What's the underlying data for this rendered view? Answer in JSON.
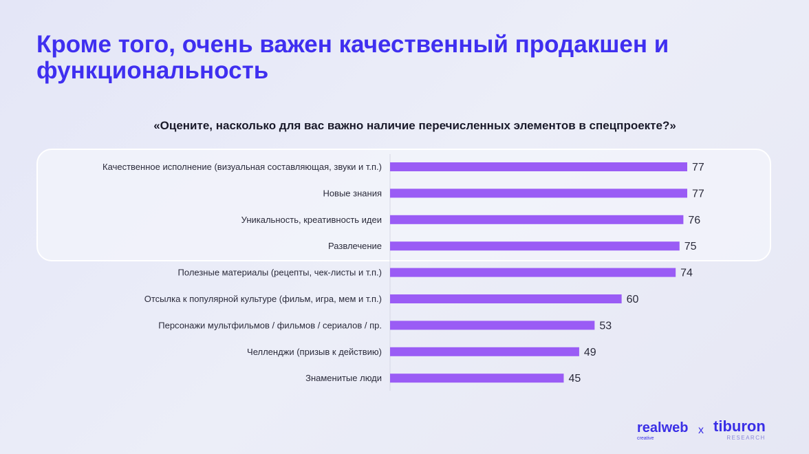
{
  "title": "Кроме того, очень важен качественный продакшен и функциональность",
  "chart_data": {
    "type": "bar",
    "orientation": "horizontal",
    "title": "«Оцените, насколько для вас важно наличие перечисленных элементов в спецпроекте?»",
    "categories": [
      "Качественное исполнение (визуальная составляющая, звуки и т.п.)",
      "Новые знания",
      "Уникальность, креативность идеи",
      "Развлечение",
      "Полезные материалы (рецепты, чек-листы и т.п.)",
      "Отсылка к популярной культуре (фильм, игра, мем и т.п.)",
      "Персонажи мультфильмов / фильмов / сериалов / пр.",
      "Челленджи (призыв к действию)",
      "Знаменитые люди"
    ],
    "values": [
      77,
      77,
      76,
      75,
      74,
      60,
      53,
      49,
      45
    ],
    "xlim": [
      0,
      77
    ],
    "grid": false,
    "bar_color": "#9a5cf5",
    "highlighted_top": 4
  },
  "logos": {
    "left": "realweb",
    "left_sub": "creative",
    "sep": "x",
    "right": "tiburon",
    "right_sub": "RESEARCH"
  }
}
